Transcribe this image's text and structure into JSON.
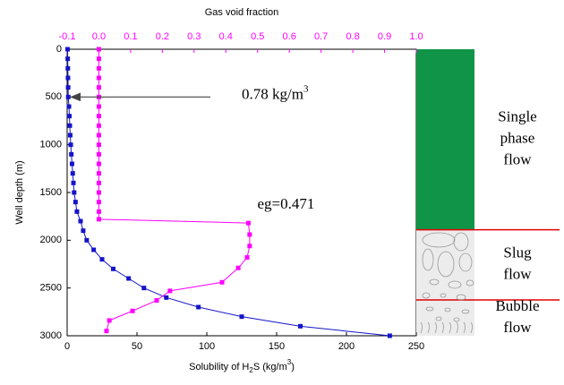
{
  "chart_data": {
    "type": "line",
    "x_top_label": "Gas void fraction",
    "xlabel_parts": [
      "Solubility of H",
      "2",
      "S (kg/m",
      "3",
      ")"
    ],
    "ylabel": "Well depth (m)",
    "xlim": [
      0,
      250
    ],
    "xticks": [
      0,
      50,
      100,
      150,
      200,
      250
    ],
    "x2lim": [
      -0.1,
      1.0
    ],
    "x2ticks": [
      -0.1,
      {
        "value": 0,
        "label": "0.0"
      },
      0.1,
      0.2,
      0.3,
      0.4,
      0.5,
      0.6,
      0.7,
      0.8,
      0.9,
      {
        "value": 1,
        "label": "1.0"
      }
    ],
    "ylim": [
      0,
      3000
    ],
    "yticks": [
      0,
      500,
      1000,
      1500,
      2000,
      2500,
      3000
    ],
    "y_inverted": true,
    "series": [
      {
        "color": "#1414c8",
        "axis": "x",
        "depth": [
          0,
          100,
          200,
          300,
          400,
          500,
          600,
          700,
          800,
          900,
          1000,
          1100,
          1200,
          1300,
          1400,
          1500,
          1600,
          1700,
          1800,
          1900,
          2000,
          2100,
          2200,
          2300,
          2400,
          2500,
          2600,
          2700,
          2800,
          2900,
          3000
        ],
        "values": [
          0.3,
          0.4,
          0.5,
          0.6,
          0.7,
          0.78,
          1.3,
          1.6,
          1.9,
          2.2,
          2.6,
          3,
          3.5,
          4,
          4.5,
          5,
          6,
          7,
          9.6,
          11.5,
          14,
          19,
          25,
          33,
          44,
          55,
          71,
          94,
          125,
          167,
          231
        ]
      },
      {
        "color": "#ff00ff",
        "axis": "x2",
        "depth": [
          0,
          100,
          200,
          300,
          400,
          500,
          600,
          700,
          800,
          900,
          1000,
          1100,
          1200,
          1300,
          1400,
          1500,
          1600,
          1700,
          1780,
          1820,
          1940,
          2060,
          2180,
          2290,
          2440,
          2530,
          2630,
          2740,
          2840,
          2950
        ],
        "values": [
          0,
          0,
          0,
          0,
          0,
          0,
          0,
          0,
          0,
          0,
          0,
          0,
          0,
          0,
          0,
          0,
          0,
          0,
          0,
          0.471,
          0.475,
          0.475,
          0.467,
          0.439,
          0.388,
          0.224,
          0.182,
          0.106,
          0.033,
          0.024
        ]
      }
    ],
    "annotations": [
      {
        "parts": [
          "0.78 kg/m",
          "3"
        ],
        "value": 0.78,
        "depth": 500
      },
      {
        "text": "eg=0.471",
        "value": 0.471,
        "depth": 1820
      }
    ],
    "regimes": [
      {
        "lines": [
          "Single",
          "phase",
          "flow"
        ],
        "depth_range": [
          0,
          1890
        ],
        "color": "#109447"
      },
      {
        "lines": [
          "Slug",
          "flow"
        ],
        "depth_range": [
          1890,
          2625
        ],
        "color": "#ececec"
      },
      {
        "lines": [
          "Bubble",
          "flow"
        ],
        "depth_range": [
          2625,
          3000
        ],
        "color": "#ececec"
      }
    ]
  }
}
